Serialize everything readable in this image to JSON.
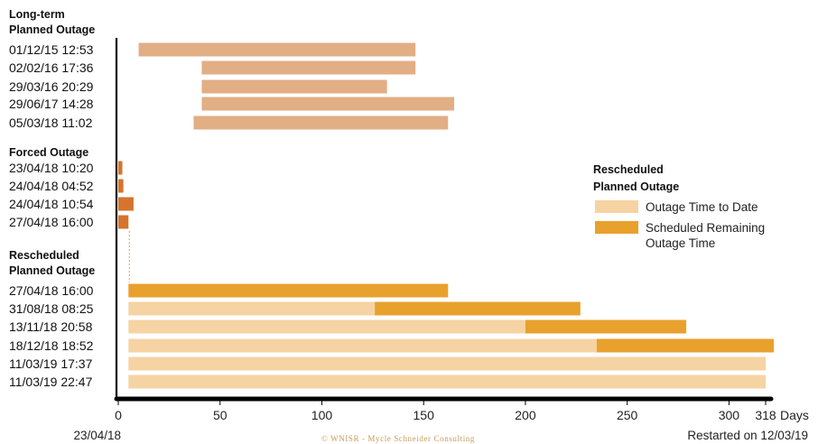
{
  "colors": {
    "long_term": "#e2ae84",
    "forced": "#d4742e",
    "to_date": "#f6d3a3",
    "remaining": "#e9a12d",
    "axis": "#000000",
    "connector": "#e2ae84",
    "credit": "#c79a5a"
  },
  "chart_data": {
    "type": "bar",
    "orientation": "horizontal",
    "stacked": true,
    "x_range": [
      0,
      318
    ],
    "x_ticks": [
      "0",
      "50",
      "100",
      "150",
      "200",
      "250",
      "300",
      "318"
    ],
    "x_tick_values": [
      0,
      50,
      100,
      150,
      200,
      250,
      300,
      318
    ],
    "x_unit": "Days",
    "x_start_label": "23/04/18",
    "x_end_label": "Restarted on 12/03/19",
    "credit": "© WNISR - Mycle Schneider Consulting",
    "groups": [
      {
        "title_lines": [
          "Long-term",
          "Planned Outage"
        ],
        "color_key": "long_term",
        "bars": [
          {
            "label": "01/12/15 12:53",
            "start": 10,
            "end": 146
          },
          {
            "label": "02/02/16 17:36",
            "start": 41,
            "end": 146
          },
          {
            "label": "29/03/16 20:29",
            "start": 41,
            "end": 132
          },
          {
            "label": "29/06/17 14:28",
            "start": 41,
            "end": 165
          },
          {
            "label": "05/03/18 11:02",
            "start": 37,
            "end": 162
          }
        ]
      },
      {
        "title_lines": [
          "Forced Outage"
        ],
        "color_key": "forced",
        "bars": [
          {
            "label": "23/04/18 10:20",
            "start": 0,
            "end": 2
          },
          {
            "label": "24/04/18 04:52",
            "start": 0,
            "end": 2.5
          },
          {
            "label": "24/04/18 10:54",
            "start": 0,
            "end": 7.5
          },
          {
            "label": "27/04/18 16:00",
            "start": 0,
            "end": 5
          }
        ]
      },
      {
        "title_lines": [
          "Rescheduled",
          "Planned Outage"
        ],
        "stacked": true,
        "bars": [
          {
            "label": "27/04/18 16:00",
            "start": 5,
            "to_date": 0,
            "remaining": 157
          },
          {
            "label": "31/08/18 08:25",
            "start": 5,
            "to_date": 126,
            "remaining": 101
          },
          {
            "label": "13/11/18 20:58",
            "start": 5,
            "to_date": 200,
            "remaining": 79
          },
          {
            "label": "18/12/18 18:52",
            "start": 5,
            "to_date": 235,
            "remaining": 87
          },
          {
            "label": "11/03/19 17:37",
            "start": 5,
            "to_date": 318,
            "remaining": 0
          },
          {
            "label": "11/03/19 22:47",
            "start": 5,
            "to_date": 318,
            "remaining": 0
          }
        ]
      }
    ],
    "legend": {
      "title_lines": [
        "Rescheduled",
        "Planned Outage"
      ],
      "placement": "middle-right",
      "entries": [
        {
          "label_lines": [
            "Outage Time to Date"
          ],
          "color_key": "to_date"
        },
        {
          "label_lines": [
            "Scheduled Remaining",
            "Outage Time"
          ],
          "color_key": "remaining"
        }
      ]
    }
  }
}
